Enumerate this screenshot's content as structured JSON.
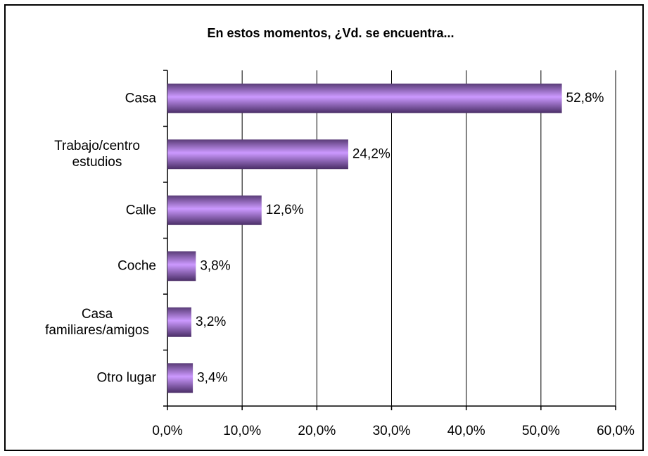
{
  "chart_data": {
    "type": "hbar",
    "title": "En estos momentos, ¿Vd. se encuentra...",
    "categories": [
      "Casa",
      "Trabajo/centro estudios",
      "Calle",
      "Coche",
      "Casa familiares/amigos",
      "Otro lugar"
    ],
    "values": [
      52.8,
      24.2,
      12.6,
      3.8,
      3.2,
      3.4
    ],
    "value_labels": [
      "52,8%",
      "24,2%",
      "12,6%",
      "3,8%",
      "3,2%",
      "3,4%"
    ],
    "color": "#cc99ff",
    "xlim": [
      0,
      60
    ],
    "xticks": [
      {
        "value": 0,
        "label": "0,0%"
      },
      {
        "value": 10,
        "label": "10,0%"
      },
      {
        "value": 20,
        "label": "20,0%"
      },
      {
        "value": 30,
        "label": "30,0%"
      },
      {
        "value": 40,
        "label": "40,0%"
      },
      {
        "value": 50,
        "label": "50,0%"
      },
      {
        "value": 60,
        "label": "60,0%"
      }
    ],
    "grid": true
  }
}
